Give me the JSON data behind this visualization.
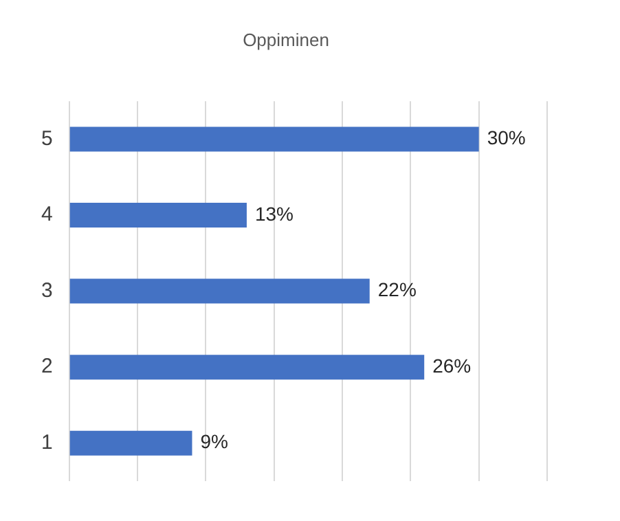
{
  "chart_data": {
    "type": "bar",
    "orientation": "horizontal",
    "title": "Oppiminen",
    "categories": [
      "5",
      "4",
      "3",
      "2",
      "1"
    ],
    "values": [
      30,
      13,
      22,
      26,
      9
    ],
    "value_labels": [
      "30%",
      "13%",
      "22%",
      "26%",
      "9%"
    ],
    "color": "#4472c4",
    "xlim": [
      0,
      35
    ],
    "xticks": [
      {
        "value": 0,
        "label": null
      },
      {
        "value": 5,
        "label": null
      },
      {
        "value": 10,
        "label": null
      },
      {
        "value": 15,
        "label": null
      },
      {
        "value": 20,
        "label": null
      },
      {
        "value": 25,
        "label": null
      },
      {
        "value": 30,
        "label": null
      },
      {
        "value": 35,
        "label": null
      }
    ],
    "grid": "x",
    "tick_labels": "y",
    "legend": false
  }
}
